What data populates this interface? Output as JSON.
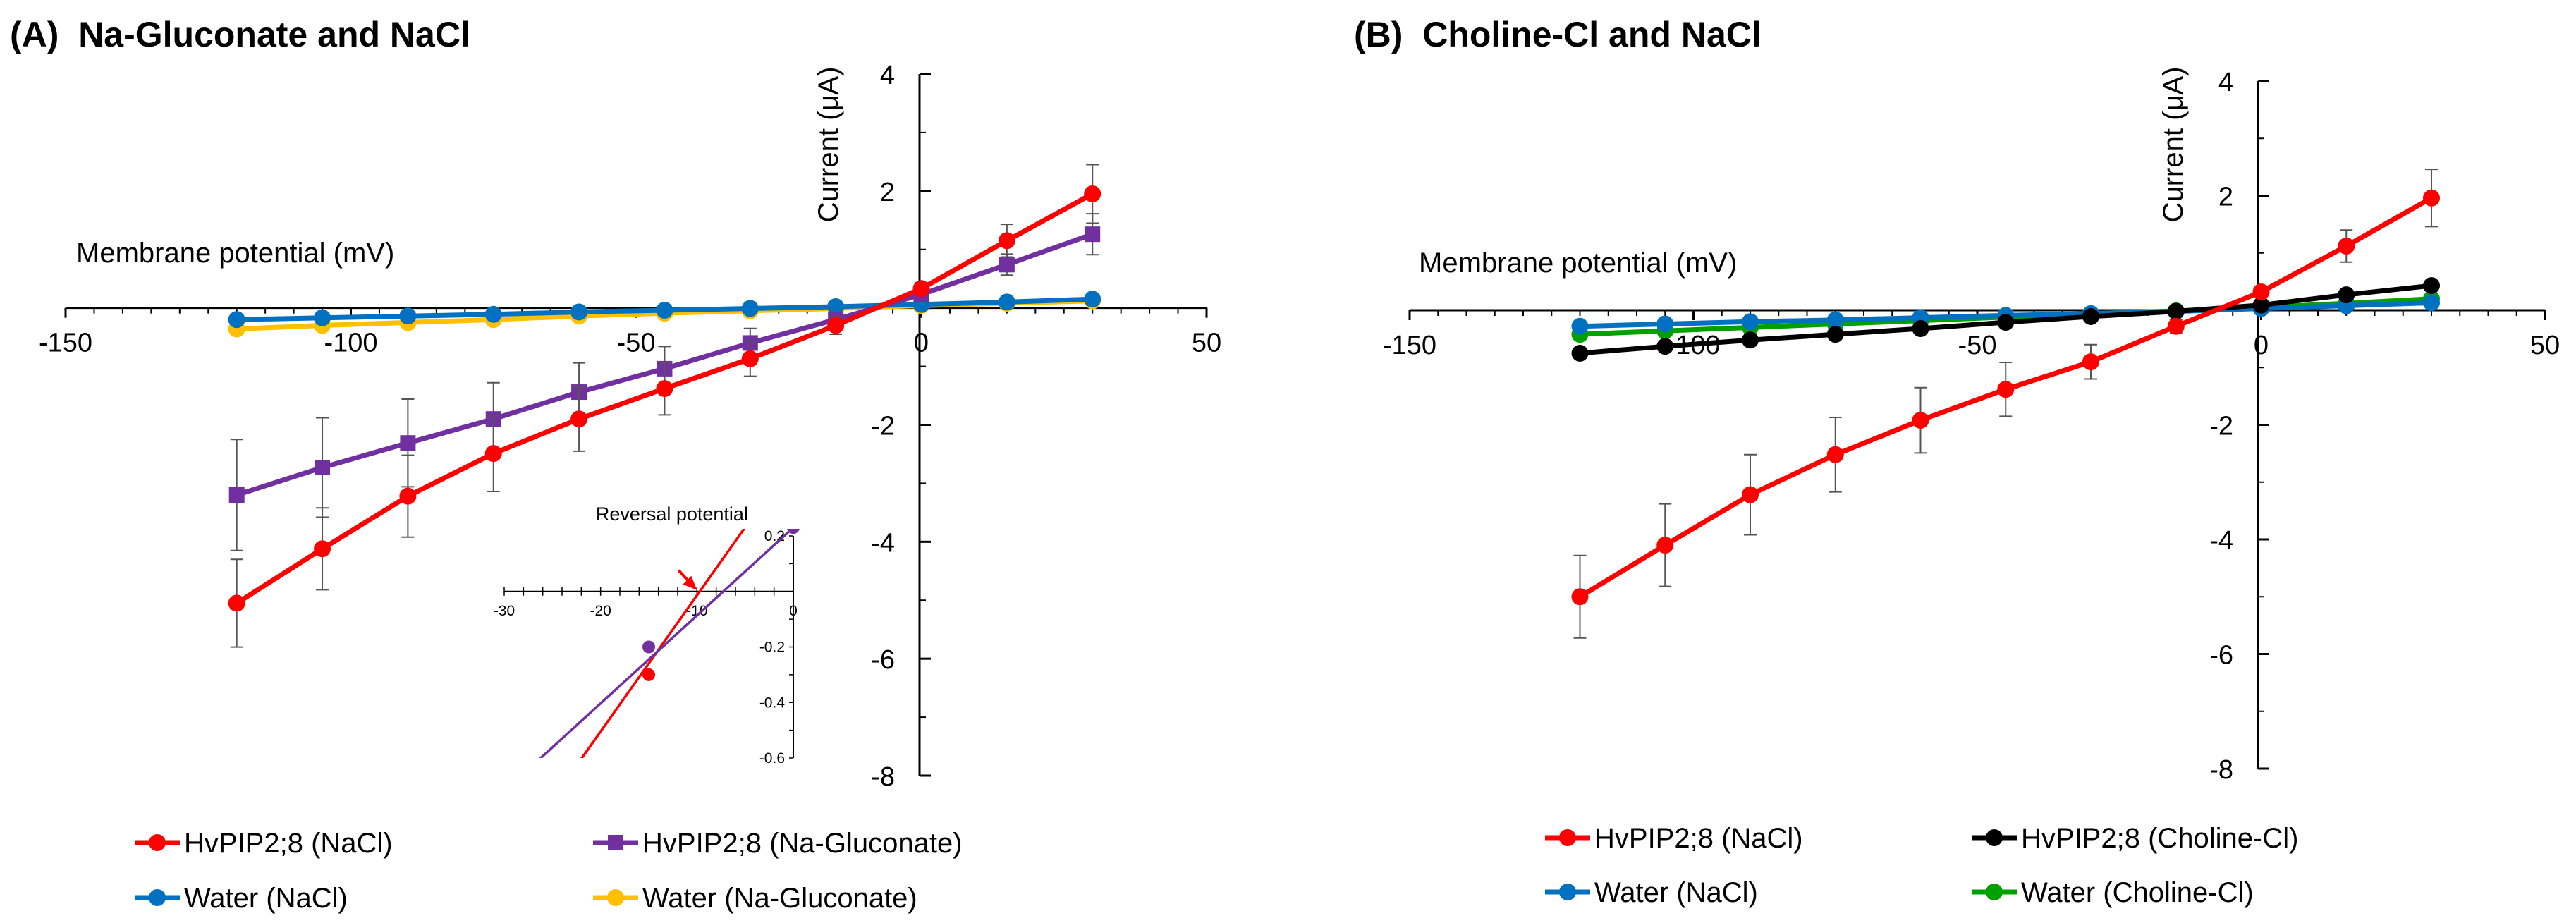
{
  "panels": [
    {
      "id": "A",
      "title": "(A)  Na-Gluconate and NaCl",
      "xlabel": "Membrane potential (mV)",
      "ylabel": "Current (μA)"
    },
    {
      "id": "B",
      "title": "(B)  Choline-Cl and NaCl",
      "xlabel": "Membrane potential (mV)",
      "ylabel": "Current (μA)"
    }
  ],
  "chart_data": [
    {
      "type": "line",
      "title": "(A)  Na-Gluconate and NaCl",
      "xlabel": "Membrane potential (mV)",
      "ylabel": "Current (μA)",
      "xlim": [
        -150,
        50
      ],
      "ylim": [
        -8,
        4
      ],
      "xticks": [
        -150,
        -100,
        -50,
        0,
        50
      ],
      "yticks": [
        -8,
        -6,
        -4,
        -2,
        2,
        4
      ],
      "x": [
        -120,
        -105,
        -90,
        -75,
        -60,
        -45,
        -30,
        -15,
        0,
        15,
        30
      ],
      "legend": "bottom",
      "series": [
        {
          "name": "HvPIP2;8 (NaCl)",
          "color": "#ff0000",
          "marker": "circle",
          "values": [
            -5.05,
            -4.12,
            -3.22,
            -2.49,
            -1.9,
            -1.38,
            -0.87,
            -0.3,
            0.33,
            1.15,
            1.95
          ],
          "errors": [
            0.75,
            0.7,
            0.7,
            0.65,
            0.55,
            0.45,
            0.3,
            0.15,
            0.1,
            0.28,
            0.5
          ]
        },
        {
          "name": "HvPIP2;8 (Na-Gluconate)",
          "color": "#7030a0",
          "marker": "square",
          "values": [
            -3.2,
            -2.73,
            -2.31,
            -1.9,
            -1.44,
            -1.04,
            -0.6,
            -0.2,
            0.23,
            0.74,
            1.26
          ],
          "errors": [
            0.95,
            0.85,
            0.75,
            0.62,
            0.5,
            0.38,
            0.25,
            0.12,
            0.08,
            0.18,
            0.35
          ]
        },
        {
          "name": "Water (NaCl)",
          "color": "#0070c0",
          "marker": "circle",
          "values": [
            -0.2,
            -0.17,
            -0.14,
            -0.11,
            -0.07,
            -0.04,
            -0.01,
            0.02,
            0.06,
            0.1,
            0.15
          ],
          "errors": [
            0.03,
            0.03,
            0.03,
            0.03,
            0.03,
            0.02,
            0.02,
            0.02,
            0.02,
            0.02,
            0.03
          ]
        },
        {
          "name": "Water (Na-Gluconate)",
          "color": "#ffc000",
          "marker": "circle",
          "values": [
            -0.36,
            -0.3,
            -0.25,
            -0.2,
            -0.14,
            -0.09,
            -0.05,
            -0.01,
            0.04,
            0.08,
            0.12
          ],
          "errors": [
            0.05,
            0.05,
            0.04,
            0.04,
            0.04,
            0.03,
            0.03,
            0.02,
            0.02,
            0.02,
            0.03
          ]
        }
      ],
      "inset": {
        "type": "line",
        "title": "Reversal potential",
        "xlim": [
          -30,
          0
        ],
        "ylim": [
          -0.6,
          0.2
        ],
        "xticks": [
          -30,
          -20,
          -10,
          0
        ],
        "yticks": [
          -0.6,
          -0.4,
          -0.2,
          0.2
        ],
        "xtick_labels": [
          "-30",
          "-20",
          "-10",
          "0"
        ],
        "ytick_labels": [
          "-0.6",
          "-0.4",
          "-0.2",
          "0.2"
        ],
        "arrow_at_x": -10,
        "series": [
          {
            "name": "HvPIP2;8 (NaCl)",
            "color": "#ff0000",
            "points": [
              [
                -15,
                -0.3
              ]
            ],
            "line_from": [
              -25,
              -0.75
            ],
            "line_to": [
              -4,
              0.28
            ]
          },
          {
            "name": "HvPIP2;8 (Na-Gluconate)",
            "color": "#7030a0",
            "points": [
              [
                -15,
                -0.2
              ],
              [
                0,
                0.23
              ]
            ],
            "line_from": [
              -30,
              -0.72
            ],
            "line_to": [
              0,
              0.23
            ]
          }
        ]
      }
    },
    {
      "type": "line",
      "title": "(B)  Choline-Cl and NaCl",
      "xlabel": "Membrane potential (mV)",
      "ylabel": "Current (μA)",
      "xlim": [
        -150,
        50
      ],
      "ylim": [
        -8,
        4
      ],
      "xticks": [
        -150,
        -100,
        -50,
        0,
        50
      ],
      "yticks": [
        -8,
        -6,
        -4,
        -2,
        2,
        4
      ],
      "x": [
        -120,
        -105,
        -90,
        -75,
        -60,
        -45,
        -30,
        -15,
        0,
        15,
        30
      ],
      "legend": "bottom",
      "series": [
        {
          "name": "HvPIP2;8 (NaCl)",
          "color": "#ff0000",
          "marker": "circle",
          "values": [
            -5.0,
            -4.1,
            -3.22,
            -2.52,
            -1.92,
            -1.38,
            -0.9,
            -0.28,
            0.32,
            1.12,
            1.96
          ],
          "errors": [
            0.72,
            0.72,
            0.7,
            0.65,
            0.57,
            0.47,
            0.3,
            0.12,
            0.1,
            0.28,
            0.5
          ]
        },
        {
          "name": "HvPIP2;8 (Choline-Cl)",
          "color": "#000000",
          "marker": "circle",
          "values": [
            -0.75,
            -0.63,
            -0.52,
            -0.42,
            -0.32,
            -0.21,
            -0.11,
            -0.02,
            0.09,
            0.27,
            0.43
          ],
          "errors": [
            0.05,
            0.05,
            0.05,
            0.04,
            0.04,
            0.04,
            0.03,
            0.02,
            0.02,
            0.03,
            0.05
          ]
        },
        {
          "name": "Water (NaCl)",
          "color": "#0070c0",
          "marker": "circle",
          "values": [
            -0.28,
            -0.24,
            -0.2,
            -0.17,
            -0.13,
            -0.09,
            -0.06,
            -0.02,
            0.03,
            0.08,
            0.13
          ],
          "errors": [
            0.03,
            0.03,
            0.03,
            0.03,
            0.03,
            0.02,
            0.02,
            0.02,
            0.02,
            0.02,
            0.03
          ]
        },
        {
          "name": "Water (Choline-Cl)",
          "color": "#00a000",
          "marker": "circle",
          "values": [
            -0.42,
            -0.36,
            -0.3,
            -0.24,
            -0.18,
            -0.12,
            -0.06,
            -0.01,
            0.05,
            0.12,
            0.2
          ],
          "errors": [
            0.04,
            0.04,
            0.04,
            0.03,
            0.03,
            0.03,
            0.02,
            0.02,
            0.02,
            0.03,
            0.03
          ]
        }
      ]
    }
  ]
}
